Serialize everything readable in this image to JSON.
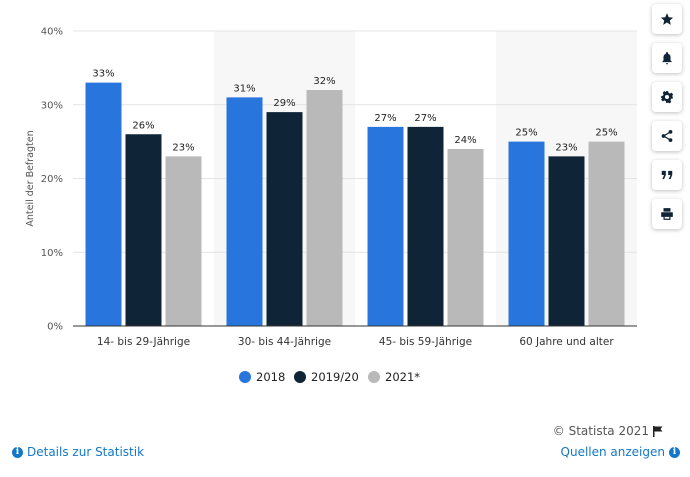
{
  "chart_data": {
    "type": "bar",
    "ylabel": "Anteil der Befragten",
    "xlabel": "",
    "ylim": [
      0,
      40
    ],
    "yticks": [
      "0%",
      "10%",
      "20%",
      "30%",
      "40%"
    ],
    "categories": [
      "14- bis 29-Jährige",
      "30- bis 44-Jährige",
      "45- bis 59-Jährige",
      "60 Jahre und alter"
    ],
    "series": [
      {
        "name": "2018",
        "color": "#2876dd",
        "values": [
          33,
          31,
          27,
          25
        ],
        "labels": [
          "33%",
          "31%",
          "27%",
          "25%"
        ]
      },
      {
        "name": "2019/20",
        "color": "#0f2437",
        "values": [
          26,
          29,
          27,
          23
        ],
        "labels": [
          "26%",
          "29%",
          "27%",
          "23%"
        ]
      },
      {
        "name": "2021*",
        "color": "#b9b9b9",
        "values": [
          23,
          32,
          24,
          25
        ],
        "labels": [
          "23%",
          "32%",
          "24%",
          "25%"
        ]
      }
    ],
    "grid": true,
    "legend_position": "bottom-center"
  },
  "sidebar": {
    "buttons": [
      {
        "name": "favorite-button",
        "icon": "star-icon"
      },
      {
        "name": "notification-button",
        "icon": "bell-icon"
      },
      {
        "name": "settings-button",
        "icon": "gear-icon"
      },
      {
        "name": "share-button",
        "icon": "share-icon"
      },
      {
        "name": "cite-button",
        "icon": "quote-icon"
      },
      {
        "name": "print-button",
        "icon": "print-icon"
      }
    ]
  },
  "footer": {
    "copyright": "© Statista 2021",
    "details_link": "Details zur Statistik",
    "sources_link": "Quellen anzeigen"
  }
}
